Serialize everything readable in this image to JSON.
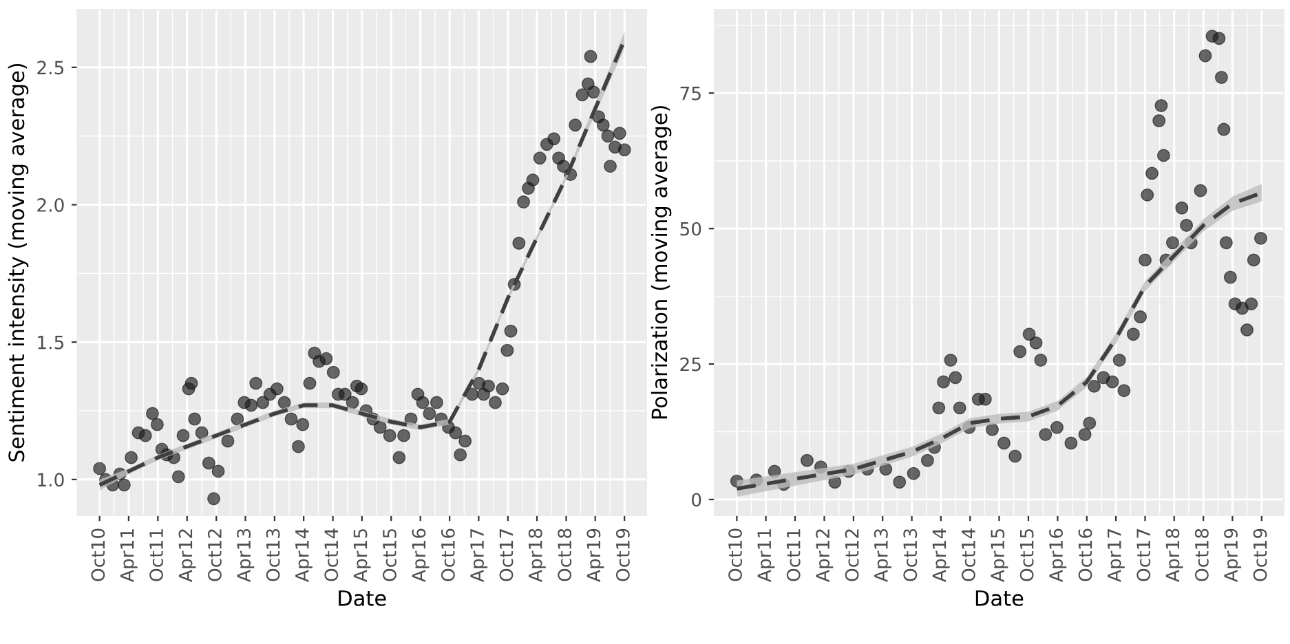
{
  "chart_data": [
    {
      "type": "scatter",
      "ylabel": "Sentiment intensity (moving average)",
      "xlabel": "Date",
      "grid": true,
      "xlim": [
        "2010-05-15",
        "2020-02-15"
      ],
      "xticks": [
        {
          "value": "2010-10",
          "label": "Oct10"
        },
        {
          "value": "2011-04",
          "label": "Apr11"
        },
        {
          "value": "2011-10",
          "label": "Oct11"
        },
        {
          "value": "2012-04",
          "label": "Apr12"
        },
        {
          "value": "2012-10",
          "label": "Oct12"
        },
        {
          "value": "2013-04",
          "label": "Apr13"
        },
        {
          "value": "2013-10",
          "label": "Oct13"
        },
        {
          "value": "2014-04",
          "label": "Apr14"
        },
        {
          "value": "2014-10",
          "label": "Oct14"
        },
        {
          "value": "2015-04",
          "label": "Apr15"
        },
        {
          "value": "2015-10",
          "label": "Oct15"
        },
        {
          "value": "2016-04",
          "label": "Apr16"
        },
        {
          "value": "2016-10",
          "label": "Oct16"
        },
        {
          "value": "2017-04",
          "label": "Apr17"
        },
        {
          "value": "2017-10",
          "label": "Oct17"
        },
        {
          "value": "2018-04",
          "label": "Apr18"
        },
        {
          "value": "2018-10",
          "label": "Oct18"
        },
        {
          "value": "2019-04",
          "label": "Apr19"
        },
        {
          "value": "2019-10",
          "label": "Oct19"
        }
      ],
      "ylim": [
        0.87,
        2.71
      ],
      "yticks": [
        {
          "value": 1,
          "label": "1.0"
        },
        {
          "value": 1.5,
          "label": "1.5"
        },
        {
          "value": 2,
          "label": "2.0"
        },
        {
          "value": 2.5,
          "label": "2.5"
        }
      ],
      "series": [
        {
          "marker": "circle",
          "color": "#1a1a1a",
          "x": [
            "2010-10-01",
            "2010-11-08",
            "2010-12-22",
            "2011-02-05",
            "2011-03-04",
            "2011-04-17",
            "2011-06-01",
            "2011-07-15",
            "2011-08-28",
            "2011-09-27",
            "2011-10-26",
            "2011-11-25",
            "2012-01-09",
            "2012-02-07",
            "2012-03-07",
            "2012-04-11",
            "2012-04-28",
            "2012-05-18",
            "2012-07-02",
            "2012-08-15",
            "2012-09-15",
            "2012-10-13",
            "2012-12-12",
            "2013-02-10",
            "2013-03-25",
            "2013-05-07",
            "2013-06-06",
            "2013-07-19",
            "2013-09-02",
            "2013-10-16",
            "2013-12-01",
            "2014-01-13",
            "2014-02-27",
            "2014-03-26",
            "2014-05-09",
            "2014-06-08",
            "2014-07-07",
            "2014-08-20",
            "2014-10-04",
            "2014-11-03",
            "2014-12-16",
            "2015-02-01",
            "2015-02-28",
            "2015-03-28",
            "2015-04-27",
            "2015-06-10",
            "2015-07-24",
            "2015-09-22",
            "2015-11-20",
            "2015-12-19",
            "2016-02-02",
            "2016-03-16",
            "2016-04-15",
            "2016-05-28",
            "2016-07-12",
            "2016-08-10",
            "2016-09-24",
            "2016-11-07",
            "2016-12-07",
            "2017-01-06",
            "2017-02-19",
            "2017-04-03",
            "2017-05-02",
            "2017-06-01",
            "2017-07-14",
            "2017-08-28",
            "2017-09-27",
            "2017-10-19",
            "2017-11-10",
            "2017-12-09",
            "2018-01-07",
            "2018-02-06",
            "2018-03-06",
            "2018-04-19",
            "2018-06-02",
            "2018-07-16",
            "2018-08-15",
            "2018-09-14",
            "2018-10-28",
            "2018-11-27",
            "2019-01-10",
            "2019-02-15",
            "2019-03-03",
            "2019-03-22",
            "2019-04-22",
            "2019-05-21",
            "2019-06-19",
            "2019-07-04",
            "2019-08-03",
            "2019-09-01",
            "2019-10-01"
          ],
          "values": [
            1.04,
            1.0,
            0.98,
            1.02,
            0.98,
            1.08,
            1.17,
            1.16,
            1.24,
            1.2,
            1.11,
            1.09,
            1.08,
            1.01,
            1.16,
            1.33,
            1.35,
            1.22,
            1.17,
            1.06,
            0.93,
            1.03,
            1.14,
            1.22,
            1.28,
            1.27,
            1.35,
            1.28,
            1.31,
            1.33,
            1.28,
            1.22,
            1.12,
            1.2,
            1.35,
            1.46,
            1.43,
            1.44,
            1.39,
            1.31,
            1.31,
            1.28,
            1.34,
            1.33,
            1.25,
            1.22,
            1.19,
            1.16,
            1.08,
            1.16,
            1.22,
            1.31,
            1.28,
            1.24,
            1.28,
            1.22,
            1.19,
            1.17,
            1.09,
            1.14,
            1.31,
            1.35,
            1.31,
            1.34,
            1.28,
            1.33,
            1.47,
            1.54,
            1.71,
            1.86,
            2.01,
            2.06,
            2.09,
            2.17,
            2.22,
            2.24,
            2.17,
            2.14,
            2.11,
            2.29,
            2.4,
            2.44,
            2.54,
            2.41,
            2.32,
            2.29,
            2.25,
            2.14,
            2.21,
            2.26,
            2.2
          ]
        },
        {
          "type": "line",
          "color": "#404040",
          "line_style": "dashed",
          "x": [
            "2010-10",
            "2011-04",
            "2011-10",
            "2012-04",
            "2012-10",
            "2013-04",
            "2013-10",
            "2014-04",
            "2014-10",
            "2015-04",
            "2015-10",
            "2016-04",
            "2016-10",
            "2017-04",
            "2017-10",
            "2018-04",
            "2018-10",
            "2019-04",
            "2019-10"
          ],
          "values": [
            0.98,
            1.03,
            1.08,
            1.12,
            1.16,
            1.2,
            1.24,
            1.27,
            1.27,
            1.24,
            1.21,
            1.19,
            1.21,
            1.4,
            1.66,
            1.88,
            2.1,
            2.35,
            2.6
          ],
          "lower": [
            0.96,
            1.02,
            1.07,
            1.11,
            1.15,
            1.19,
            1.23,
            1.26,
            1.26,
            1.23,
            1.2,
            1.18,
            1.2,
            1.39,
            1.65,
            1.87,
            2.09,
            2.33,
            2.57
          ],
          "upper": [
            1.0,
            1.04,
            1.09,
            1.13,
            1.17,
            1.21,
            1.25,
            1.28,
            1.28,
            1.25,
            1.22,
            1.2,
            1.22,
            1.41,
            1.67,
            1.89,
            2.11,
            2.37,
            2.63
          ]
        }
      ]
    },
    {
      "type": "scatter",
      "ylabel": "Polarization (moving average)",
      "xlabel": "Date",
      "grid": true,
      "xlim": [
        "2010-05-15",
        "2020-02-15"
      ],
      "xticks": [
        {
          "value": "2010-10",
          "label": "Oct10"
        },
        {
          "value": "2011-04",
          "label": "Apr11"
        },
        {
          "value": "2011-10",
          "label": "Oct11"
        },
        {
          "value": "2012-04",
          "label": "Apr12"
        },
        {
          "value": "2012-10",
          "label": "Oct12"
        },
        {
          "value": "2013-04",
          "label": "Apr13"
        },
        {
          "value": "2013-10",
          "label": "Oct13"
        },
        {
          "value": "2014-04",
          "label": "Apr14"
        },
        {
          "value": "2014-10",
          "label": "Oct14"
        },
        {
          "value": "2015-04",
          "label": "Apr15"
        },
        {
          "value": "2015-10",
          "label": "Oct15"
        },
        {
          "value": "2016-04",
          "label": "Apr16"
        },
        {
          "value": "2016-10",
          "label": "Oct16"
        },
        {
          "value": "2017-04",
          "label": "Apr17"
        },
        {
          "value": "2017-10",
          "label": "Oct17"
        },
        {
          "value": "2018-04",
          "label": "Apr18"
        },
        {
          "value": "2018-10",
          "label": "Oct18"
        },
        {
          "value": "2019-04",
          "label": "Apr19"
        },
        {
          "value": "2019-10",
          "label": "Oct19"
        }
      ],
      "ylim": [
        -2.9,
        90.4
      ],
      "yticks": [
        0,
        25,
        50,
        75
      ],
      "series": [
        {
          "marker": "circle",
          "color": "#1a1a1a",
          "x": [
            "2010-10-01",
            "2011-02-01",
            "2011-05-25",
            "2011-07-22",
            "2011-12-15",
            "2012-03-10",
            "2012-06-06",
            "2012-09-01",
            "2012-12-27",
            "2013-04-21",
            "2013-07-16",
            "2013-10-12",
            "2014-01-07",
            "2014-02-20",
            "2014-03-19",
            "2014-04-17",
            "2014-06-01",
            "2014-07-01",
            "2014-07-28",
            "2014-09-25",
            "2014-11-22",
            "2015-01-04",
            "2015-02-17",
            "2015-05-01",
            "2015-07-10",
            "2015-08-09",
            "2015-10-06",
            "2015-11-18",
            "2015-12-17",
            "2016-01-16",
            "2016-03-28",
            "2016-06-24",
            "2016-09-19",
            "2016-10-18",
            "2016-11-16",
            "2017-01-13",
            "2017-03-10",
            "2017-04-23",
            "2017-05-22",
            "2017-07-19",
            "2017-09-01",
            "2017-10-01",
            "2017-10-15",
            "2017-11-13",
            "2017-12-27",
            "2018-01-10",
            "2018-01-25",
            "2018-02-09",
            "2018-03-22",
            "2018-05-19",
            "2018-06-17",
            "2018-07-16",
            "2018-09-13",
            "2018-10-13",
            "2018-11-25",
            "2019-01-07",
            "2019-01-22",
            "2019-02-06",
            "2019-02-21",
            "2019-03-19",
            "2019-04-17",
            "2019-06-01",
            "2019-07-01",
            "2019-07-28",
            "2019-08-12",
            "2019-09-25"
          ],
          "values": [
            3.4,
            3.6,
            5.2,
            2.8,
            7.2,
            6.0,
            3.2,
            5.2,
            5.6,
            5.6,
            3.2,
            4.8,
            7.2,
            9.6,
            16.9,
            21.7,
            25.7,
            22.5,
            16.9,
            13.3,
            18.5,
            18.5,
            12.9,
            10.4,
            8.0,
            27.3,
            30.5,
            28.9,
            25.7,
            12.0,
            13.3,
            10.4,
            12.0,
            14.1,
            20.9,
            22.5,
            21.7,
            25.7,
            20.1,
            30.5,
            33.7,
            44.2,
            56.2,
            60.2,
            69.9,
            72.7,
            63.5,
            44.2,
            47.4,
            53.8,
            50.6,
            47.4,
            57.0,
            81.9,
            85.5,
            85.1,
            77.9,
            68.3,
            47.4,
            41.0,
            36.1,
            35.3,
            31.3,
            36.1,
            44.2,
            48.2
          ]
        },
        {
          "type": "line",
          "color": "#404040",
          "line_style": "dashed",
          "x": [
            "2010-10",
            "2012-10",
            "2013-10",
            "2014-04",
            "2014-10",
            "2015-04",
            "2015-10",
            "2016-04",
            "2016-10",
            "2017-04",
            "2017-10",
            "2018-04",
            "2018-10",
            "2019-04",
            "2019-10"
          ],
          "values": [
            2.0,
            5.6,
            8.8,
            11.2,
            14.1,
            14.9,
            15.3,
            17.3,
            21.7,
            29.7,
            39.4,
            45.0,
            50.6,
            54.6,
            56.6
          ],
          "lower": [
            0.5,
            4.6,
            7.9,
            10.3,
            13.2,
            14.0,
            14.4,
            16.4,
            20.8,
            28.8,
            38.5,
            44.0,
            49.5,
            53.3,
            55.0
          ],
          "upper": [
            3.5,
            6.6,
            9.7,
            12.1,
            15.0,
            15.8,
            16.2,
            18.2,
            22.6,
            30.6,
            40.3,
            46.0,
            51.7,
            55.9,
            58.2
          ]
        }
      ]
    }
  ]
}
